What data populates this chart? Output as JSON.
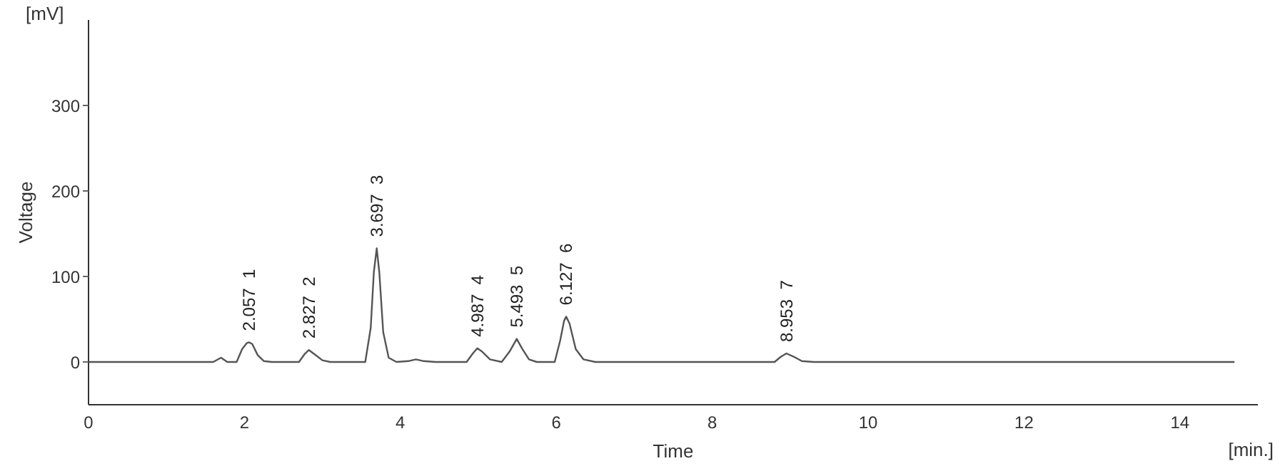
{
  "chart_data": {
    "type": "line",
    "xlabel": "Time",
    "ylabel": "Voltage",
    "x": [
      0,
      1.6,
      1.7,
      1.78,
      1.9,
      1.97,
      2.03,
      2.057,
      2.1,
      2.17,
      2.25,
      2.35,
      2.7,
      2.77,
      2.827,
      2.9,
      3.0,
      3.1,
      3.55,
      3.62,
      3.66,
      3.697,
      3.73,
      3.78,
      3.85,
      3.95,
      4.1,
      4.2,
      4.3,
      4.45,
      4.85,
      4.93,
      4.987,
      5.05,
      5.15,
      5.3,
      5.4,
      5.493,
      5.56,
      5.65,
      5.75,
      5.98,
      6.05,
      6.1,
      6.127,
      6.17,
      6.25,
      6.35,
      6.5,
      8.8,
      8.88,
      8.953,
      9.05,
      9.15,
      9.3,
      14.7
    ],
    "series": [
      {
        "color": "#555555",
        "values": [
          0,
          0,
          5,
          0,
          0,
          15,
          22,
          23,
          21,
          8,
          1,
          0,
          0,
          9,
          14,
          9,
          2,
          0,
          0,
          40,
          105,
          133,
          105,
          35,
          5,
          0,
          1,
          3,
          1,
          0,
          0,
          10,
          16,
          12,
          3,
          0,
          12,
          27,
          16,
          3,
          0,
          0,
          25,
          48,
          53,
          45,
          15,
          3,
          0,
          0,
          6,
          10,
          6,
          1,
          0,
          0
        ]
      }
    ],
    "xlim": [
      0,
      15
    ],
    "xticks": [
      0,
      2,
      4,
      6,
      8,
      10,
      12,
      14
    ],
    "ylim": [
      -50,
      400
    ],
    "yticks": [
      0,
      100,
      200,
      300
    ],
    "grid": false,
    "legend": false,
    "marker": "none",
    "line_style": "solid",
    "annotations": [
      {
        "text": "2.057  1",
        "x": 2.057,
        "y": 23
      },
      {
        "text": "2.827  2",
        "x": 2.827,
        "y": 14
      },
      {
        "text": "3.697  3",
        "x": 3.697,
        "y": 133
      },
      {
        "text": "4.987  4",
        "x": 4.987,
        "y": 16
      },
      {
        "text": "5.493  5",
        "x": 5.493,
        "y": 27
      },
      {
        "text": "6.127  6",
        "x": 6.127,
        "y": 53
      },
      {
        "text": "8.953  7",
        "x": 8.953,
        "y": 10
      },
      "[mV]",
      "[min.]"
    ]
  }
}
